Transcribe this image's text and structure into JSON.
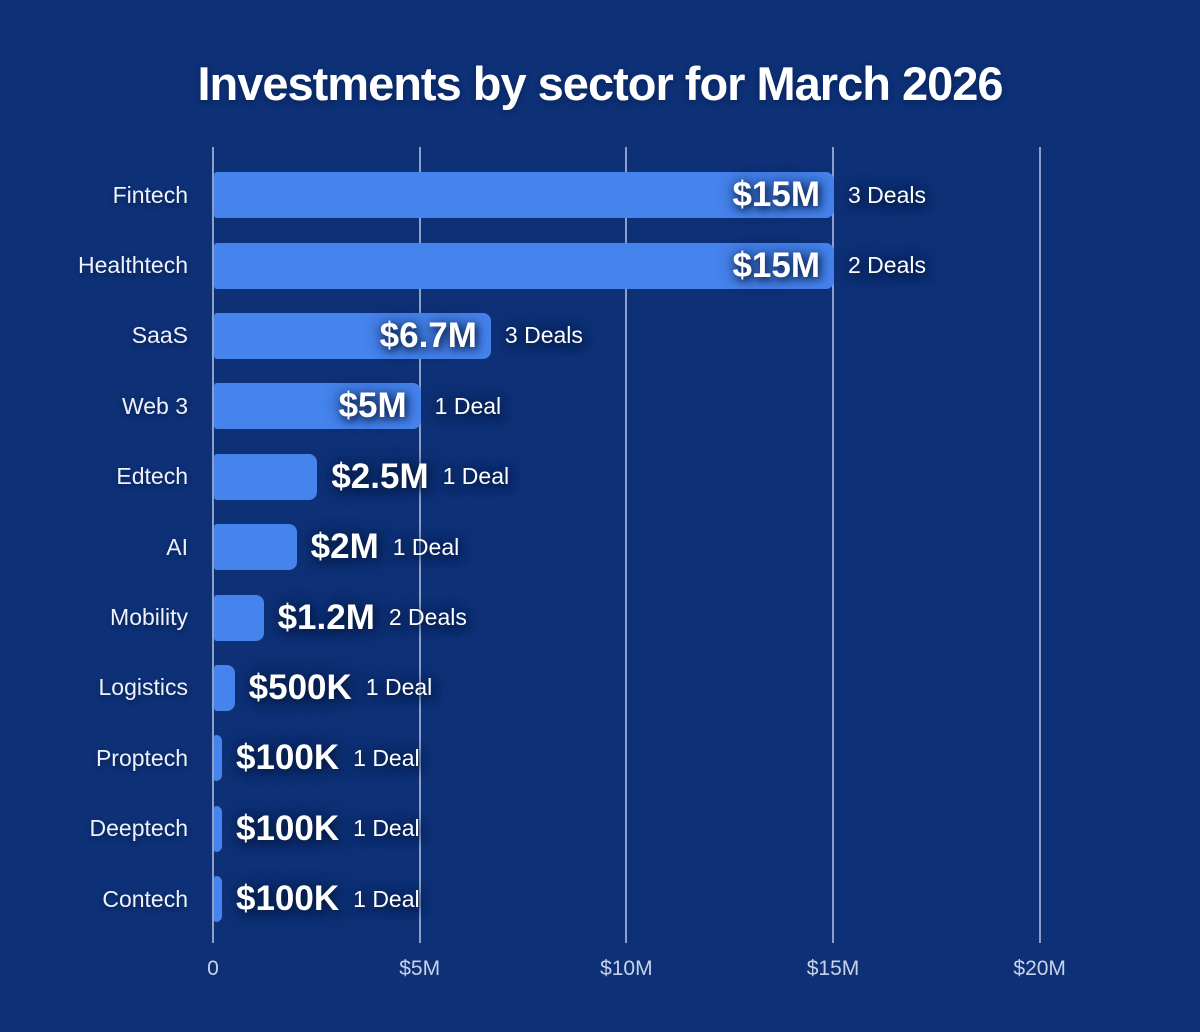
{
  "title": "Investments by sector for March 2026",
  "colors": {
    "background": "#0d3076",
    "bar": "#4583ed",
    "gridline": "#8da0c9",
    "axis_label": "#c9d3e8",
    "text": "#ffffff"
  },
  "chart_data": {
    "type": "bar",
    "orientation": "horizontal",
    "title": "Investments by sector for March 2026",
    "categories": [
      "Fintech",
      "Healthtech",
      "SaaS",
      "Web 3",
      "Edtech",
      "AI",
      "Mobility",
      "Logistics",
      "Proptech",
      "Deeptech",
      "Contech"
    ],
    "values_millions_usd": [
      15,
      15,
      6.7,
      5,
      2.5,
      2,
      1.2,
      0.5,
      0.1,
      0.1,
      0.1
    ],
    "value_labels": [
      "$15M",
      "$15M",
      "$6.7M",
      "$5M",
      "$2.5M",
      "$2M",
      "$1.2M",
      "$500K",
      "$100K",
      "$100K",
      "$100K"
    ],
    "deal_labels": [
      "3 Deals",
      "2 Deals",
      "3 Deals",
      "1 Deal",
      "1 Deal",
      "1 Deal",
      "2 Deals",
      "1 Deal",
      "1 Deal",
      "1 Deal",
      "1 Deal"
    ],
    "xlabel": "",
    "ylabel": "",
    "x_axis": {
      "tick_labels": [
        "0",
        "$5M",
        "$10M",
        "$15M",
        "$20M"
      ],
      "tick_values_millions_usd": [
        0,
        5,
        10,
        15,
        20
      ],
      "range_millions_usd": [
        0,
        20
      ]
    },
    "grid": "vertical-solid",
    "legend": "none",
    "value_label_inside_threshold_millions_usd": 4
  }
}
